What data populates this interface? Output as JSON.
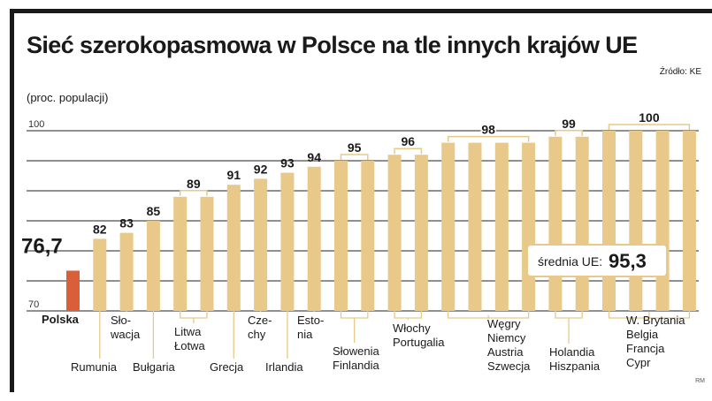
{
  "title": "Sieć szerokopasmowa w Polsce na tle innych krajów UE",
  "source": "Źródło: KE",
  "unit_label": "(proc. populacji)",
  "logo_mark": "RM",
  "colors": {
    "bar": "#e8c98a",
    "highlight": "#d95f3b",
    "grid": "#222222",
    "bracket": "#e8c98a"
  },
  "chart_data": {
    "type": "bar",
    "ylim": [
      70,
      100
    ],
    "yticks": [
      "70",
      "100"
    ],
    "grid": true,
    "bars": [
      76.7,
      82,
      83,
      85,
      89,
      89,
      91,
      92,
      93,
      94,
      95,
      95,
      96,
      96,
      98,
      98,
      98,
      98,
      99,
      99,
      100,
      100,
      100,
      100
    ],
    "highlight_index": 0,
    "value_labels": [
      {
        "text": "76,7",
        "bars": [
          0
        ]
      },
      {
        "text": "82",
        "bars": [
          1
        ]
      },
      {
        "text": "83",
        "bars": [
          2
        ]
      },
      {
        "text": "85",
        "bars": [
          3
        ]
      },
      {
        "text": "89",
        "bars": [
          4,
          5
        ]
      },
      {
        "text": "91",
        "bars": [
          6
        ]
      },
      {
        "text": "92",
        "bars": [
          7
        ]
      },
      {
        "text": "93",
        "bars": [
          8
        ]
      },
      {
        "text": "94",
        "bars": [
          9
        ]
      },
      {
        "text": "95",
        "bars": [
          10,
          11
        ]
      },
      {
        "text": "96",
        "bars": [
          12,
          13
        ]
      },
      {
        "text": "98",
        "bars": [
          14,
          15,
          16,
          17
        ]
      },
      {
        "text": "99",
        "bars": [
          18,
          19
        ]
      },
      {
        "text": "100",
        "bars": [
          20,
          21,
          22,
          23
        ]
      }
    ],
    "country_labels": [
      {
        "lines": [
          "Polska"
        ],
        "bars": [
          0
        ]
      },
      {
        "lines": [
          "Rumunia"
        ],
        "bars": [
          1
        ]
      },
      {
        "lines": [
          "Sło-",
          "wacja"
        ],
        "bars": [
          2
        ]
      },
      {
        "lines": [
          "Bułgaria"
        ],
        "bars": [
          3
        ]
      },
      {
        "lines": [
          "Litwa",
          "Łotwa"
        ],
        "bars": [
          4,
          5
        ]
      },
      {
        "lines": [
          "Grecja"
        ],
        "bars": [
          6
        ]
      },
      {
        "lines": [
          "Cze-",
          "chy"
        ],
        "bars": [
          7
        ]
      },
      {
        "lines": [
          "Irlandia"
        ],
        "bars": [
          8
        ]
      },
      {
        "lines": [
          "Esto-",
          "nia"
        ],
        "bars": [
          9
        ]
      },
      {
        "lines": [
          "Słowenia",
          "Finlandia"
        ],
        "bars": [
          10,
          11
        ]
      },
      {
        "lines": [
          "Włochy",
          "Portugalia"
        ],
        "bars": [
          12,
          13
        ]
      },
      {
        "lines": [
          "Węgry",
          "Niemcy",
          "Austria",
          "Szwecja"
        ],
        "bars": [
          14,
          15,
          16,
          17
        ]
      },
      {
        "lines": [
          "Holandia",
          "Hiszpania"
        ],
        "bars": [
          18,
          19
        ]
      },
      {
        "lines": [
          "W. Brytania",
          "Belgia",
          "Francja",
          "Cypr"
        ],
        "bars": [
          20,
          21,
          22,
          23
        ]
      }
    ],
    "average": {
      "label": "średnia UE:",
      "value": "95,3"
    }
  }
}
